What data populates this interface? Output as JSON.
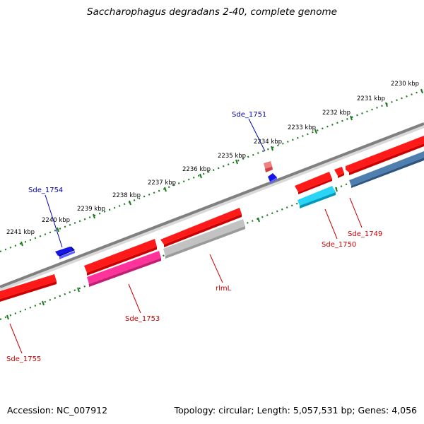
{
  "title": "Saccharophagus degradans 2-40, complete genome",
  "footer": {
    "accession": "Accession: NC_007912",
    "summary": "Topology: circular; Length: 5,057,531 bp; Genes: 4,056"
  },
  "colors": {
    "backbone": "#808080",
    "tick": "#1e7a1e",
    "forward_gene": "#ff1a1a",
    "cds_magenta": "#ff3399",
    "cds_cyan": "#2ad4f4",
    "cds_steel": "#4f7fae",
    "rrna_gray": "#bdbdbd",
    "small_blue": "#1515e6",
    "label_blue": "#0000aa",
    "label_red": "#cc0000"
  },
  "scale_labels": [
    "2230 kbp",
    "2231 kbp",
    "2232 kbp",
    "2233 kbp",
    "2234 kbp",
    "2235 kbp",
    "2236 kbp",
    "2237 kbp",
    "2238 kbp",
    "2239 kbp",
    "2240 kbp",
    "2241 kbp"
  ],
  "gene_labels": {
    "sde_1751": "Sde_1751",
    "sde_1754": "Sde_1754",
    "sde_1749": "Sde_1749",
    "sde_1750": "Sde_1750",
    "rlml": "rlmL",
    "sde_1753": "Sde_1753",
    "sde_1755": "Sde_1755"
  }
}
